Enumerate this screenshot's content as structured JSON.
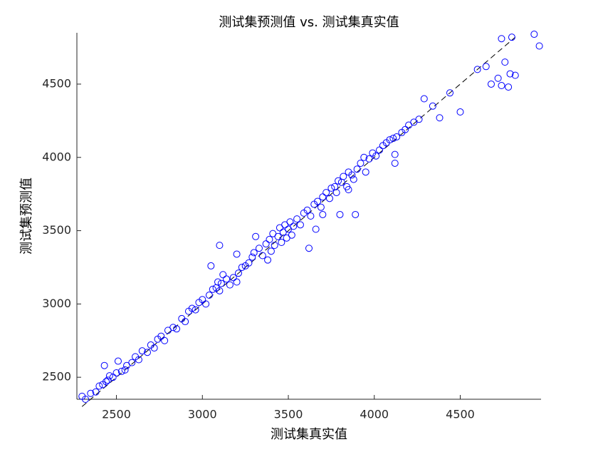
{
  "chart_data": {
    "type": "scatter",
    "title": "测试集预测值 vs. 测试集真实值",
    "x_label": "测试集真实值",
    "y_label": "测试集预测值",
    "xlim": [
      2270,
      4970
    ],
    "ylim": [
      2350,
      4850
    ],
    "xticks": [
      2500,
      3000,
      3500,
      4000,
      4500
    ],
    "yticks": [
      2500,
      3000,
      3500,
      4000,
      4500
    ],
    "color": "#0000ff",
    "reference_line": {
      "x": [
        2300,
        4820
      ],
      "y": [
        2300,
        4820
      ]
    },
    "x": [
      2350,
      2380,
      2400,
      2420,
      2440,
      2460,
      2480,
      2500,
      2530,
      2560,
      2590,
      2610,
      2630,
      2650,
      2680,
      2700,
      2720,
      2740,
      2760,
      2780,
      2800,
      2830,
      2850,
      2880,
      2900,
      2920,
      2940,
      2960,
      2980,
      3000,
      3020,
      3040,
      3060,
      3080,
      3090,
      3100,
      3110,
      3120,
      3140,
      3160,
      3180,
      3200,
      3210,
      3230,
      3250,
      3270,
      3290,
      3300,
      3310,
      3330,
      3350,
      3370,
      3380,
      3390,
      3400,
      3410,
      3420,
      3440,
      3450,
      3460,
      3470,
      3480,
      3490,
      3500,
      3510,
      3520,
      3530,
      3550,
      3570,
      3590,
      3610,
      3630,
      3650,
      3670,
      3690,
      3700,
      3720,
      3740,
      3750,
      3770,
      3780,
      3790,
      3810,
      3820,
      3840,
      3850,
      3870,
      3880,
      3900,
      3920,
      3940,
      3950,
      3970,
      3990,
      4010,
      4030,
      4050,
      4070,
      4090,
      4110,
      4130,
      4160,
      4180,
      4200,
      4230,
      4260,
      3700,
      3660,
      3050,
      2550,
      2450,
      3850,
      2300,
      2320,
      2430,
      2510,
      3100,
      3200,
      3620,
      3890,
      3800,
      4120,
      4120,
      4290,
      4500,
      4380,
      4600,
      4650,
      4680,
      4720,
      4740,
      4760,
      4780,
      4790,
      4800,
      4820,
      4930,
      4960,
      4740,
      4440,
      4340
    ],
    "y": [
      2390,
      2400,
      2440,
      2450,
      2470,
      2510,
      2500,
      2530,
      2540,
      2580,
      2600,
      2640,
      2620,
      2680,
      2670,
      2720,
      2700,
      2760,
      2780,
      2750,
      2820,
      2840,
      2830,
      2900,
      2880,
      2950,
      2970,
      2960,
      3010,
      3030,
      3000,
      3060,
      3100,
      3110,
      3150,
      3090,
      3140,
      3200,
      3170,
      3130,
      3180,
      3150,
      3210,
      3250,
      3260,
      3280,
      3320,
      3350,
      3460,
      3380,
      3330,
      3410,
      3300,
      3440,
      3360,
      3480,
      3400,
      3460,
      3520,
      3420,
      3490,
      3540,
      3450,
      3510,
      3560,
      3470,
      3530,
      3580,
      3540,
      3620,
      3640,
      3600,
      3680,
      3700,
      3660,
      3730,
      3760,
      3720,
      3790,
      3800,
      3760,
      3840,
      3830,
      3870,
      3800,
      3900,
      3880,
      3850,
      3920,
      3960,
      4000,
      3900,
      3990,
      4030,
      4010,
      4050,
      4080,
      4100,
      4120,
      4130,
      4140,
      4170,
      4190,
      4220,
      4240,
      4260,
      3610,
      3510,
      3260,
      2550,
      2480,
      3780,
      2370,
      2350,
      2580,
      2610,
      3400,
      3340,
      3380,
      3610,
      3610,
      3960,
      4020,
      4400,
      4310,
      4270,
      4600,
      4620,
      4500,
      4540,
      4490,
      4650,
      4480,
      4570,
      4820,
      4560,
      4840,
      4760,
      4810,
      4440,
      4350
    ]
  }
}
